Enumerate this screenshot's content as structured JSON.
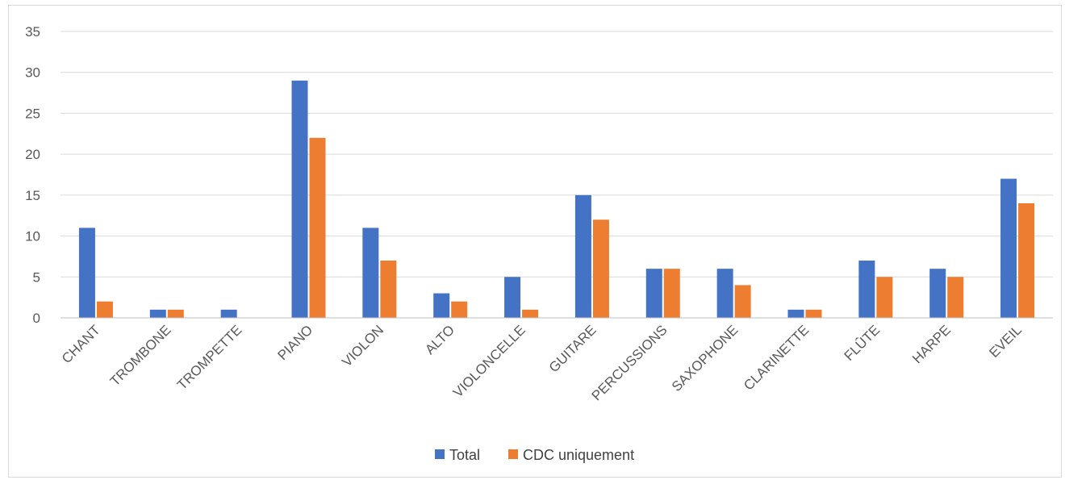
{
  "chart_data": {
    "type": "bar",
    "categories": [
      "CHANT",
      "TROMBONE",
      "TROMPETTE",
      "PIANO",
      "VIOLON",
      "ALTO",
      "VIOLONCELLE",
      "GUITARE",
      "PERCUSSIONS",
      "SAXOPHONE",
      "CLARINETTE",
      "FLÛTE",
      "HARPE",
      "EVEIL"
    ],
    "series": [
      {
        "name": "Total",
        "color": "#4472C4",
        "values": [
          11,
          1,
          1,
          29,
          11,
          3,
          5,
          15,
          6,
          6,
          1,
          7,
          6,
          17
        ]
      },
      {
        "name": "CDC uniquement",
        "color": "#ED7D31",
        "values": [
          2,
          1,
          0,
          22,
          7,
          2,
          1,
          12,
          6,
          4,
          1,
          5,
          5,
          14
        ]
      }
    ],
    "yticks": [
      "0",
      "5",
      "10",
      "15",
      "20",
      "25",
      "30",
      "35"
    ],
    "ylim": [
      0,
      35
    ],
    "grid": true,
    "legend_position": "bottom"
  }
}
